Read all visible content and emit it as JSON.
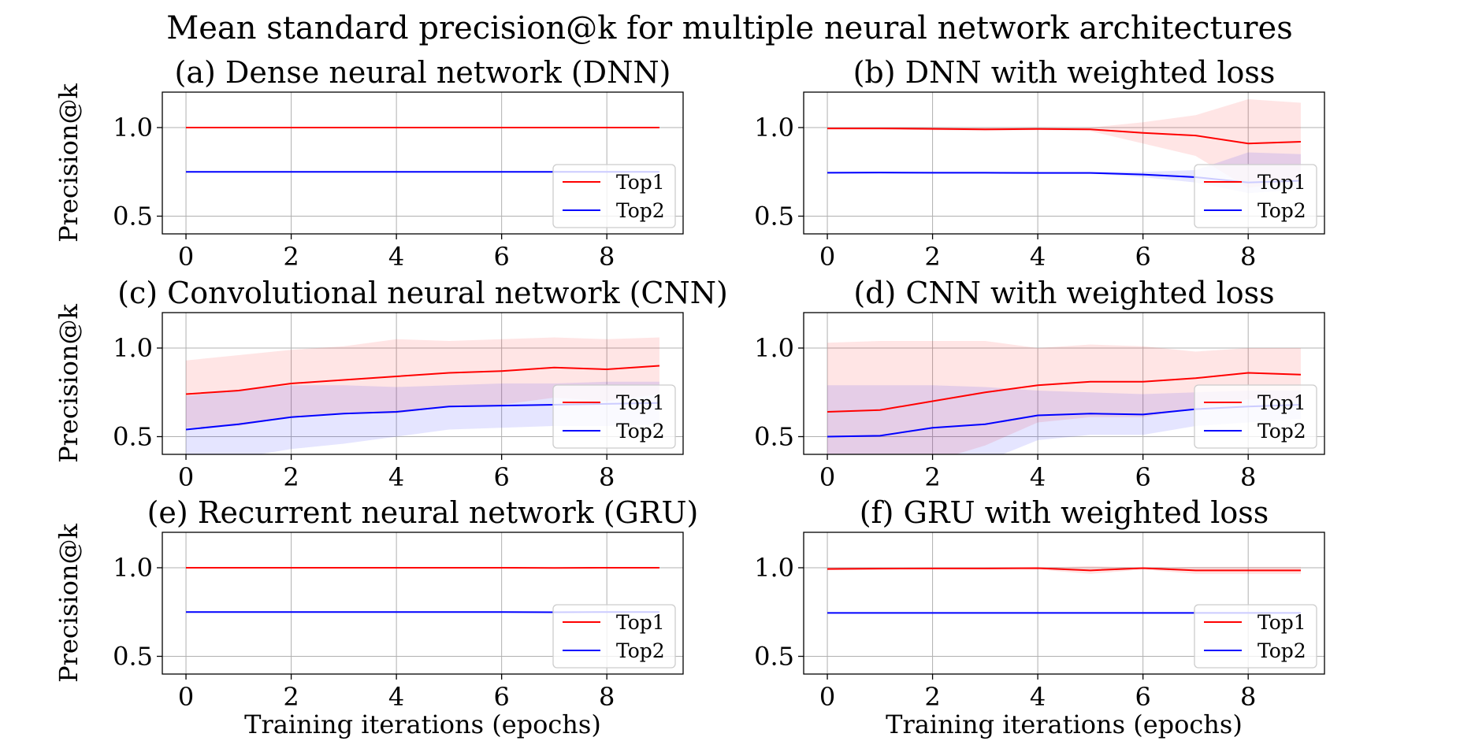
{
  "figure": {
    "title": "Mean standard precision@k for multiple neural network architectures"
  },
  "colors": {
    "top1": "#ff0000",
    "top2": "#0000ff",
    "top1_band": "#ff0000",
    "top2_band": "#0000ff",
    "grid": "#b0b0b0"
  },
  "chart_data": [
    {
      "type": "line",
      "title": "(a) Dense neural network (DNN)",
      "xlabel": "",
      "ylabel": "Precision@k",
      "xlim": [
        -0.45,
        9.45
      ],
      "ylim": [
        0.4,
        1.2
      ],
      "xticks": [
        0,
        2,
        4,
        6,
        8
      ],
      "yticks": [
        0.5,
        1.0
      ],
      "grid": true,
      "legend": "lower-right",
      "x": [
        0,
        1,
        2,
        3,
        4,
        5,
        6,
        7,
        8,
        9
      ],
      "series": [
        {
          "name": "Top1",
          "color": "top1",
          "values": [
            1.0,
            1.0,
            1.0,
            1.0,
            1.0,
            1.0,
            1.0,
            1.0,
            1.0,
            1.0
          ],
          "band_lower": [
            1.0,
            1.0,
            1.0,
            1.0,
            1.0,
            1.0,
            1.0,
            1.0,
            1.0,
            1.0
          ],
          "band_upper": [
            1.0,
            1.0,
            1.0,
            1.0,
            1.0,
            1.0,
            1.0,
            1.0,
            1.0,
            1.0
          ]
        },
        {
          "name": "Top2",
          "color": "top2",
          "values": [
            0.75,
            0.75,
            0.75,
            0.75,
            0.75,
            0.75,
            0.75,
            0.75,
            0.75,
            0.75
          ],
          "band_lower": [
            0.75,
            0.75,
            0.75,
            0.75,
            0.75,
            0.75,
            0.75,
            0.75,
            0.75,
            0.75
          ],
          "band_upper": [
            0.75,
            0.75,
            0.75,
            0.75,
            0.75,
            0.75,
            0.75,
            0.75,
            0.75,
            0.75
          ]
        }
      ]
    },
    {
      "type": "line",
      "title": "(b) DNN with weighted loss",
      "xlabel": "",
      "ylabel": "",
      "xlim": [
        -0.45,
        9.45
      ],
      "ylim": [
        0.4,
        1.2
      ],
      "xticks": [
        0,
        2,
        4,
        6,
        8
      ],
      "yticks": [
        0.5,
        1.0
      ],
      "grid": true,
      "legend": "lower-right",
      "x": [
        0,
        1,
        2,
        3,
        4,
        5,
        6,
        7,
        8,
        9
      ],
      "series": [
        {
          "name": "Top1",
          "color": "top1",
          "values": [
            0.995,
            0.995,
            0.993,
            0.99,
            0.992,
            0.99,
            0.97,
            0.955,
            0.91,
            0.92
          ],
          "band_lower": [
            0.99,
            0.99,
            0.985,
            0.98,
            0.985,
            0.98,
            0.91,
            0.84,
            0.66,
            0.7
          ],
          "band_upper": [
            1.0,
            1.0,
            1.0,
            1.0,
            1.0,
            1.0,
            1.03,
            1.07,
            1.16,
            1.14
          ]
        },
        {
          "name": "Top2",
          "color": "top2",
          "values": [
            0.745,
            0.746,
            0.745,
            0.745,
            0.744,
            0.744,
            0.735,
            0.72,
            0.69,
            0.7
          ],
          "band_lower": [
            0.74,
            0.74,
            0.74,
            0.74,
            0.74,
            0.74,
            0.72,
            0.69,
            0.63,
            0.65
          ],
          "band_upper": [
            0.75,
            0.75,
            0.75,
            0.75,
            0.75,
            0.75,
            0.75,
            0.76,
            0.86,
            0.85
          ]
        }
      ]
    },
    {
      "type": "line",
      "title": "(c) Convolutional neural network (CNN)",
      "xlabel": "",
      "ylabel": "Precision@k",
      "xlim": [
        -0.45,
        9.45
      ],
      "ylim": [
        0.4,
        1.2
      ],
      "xticks": [
        0,
        2,
        4,
        6,
        8
      ],
      "yticks": [
        0.5,
        1.0
      ],
      "grid": true,
      "legend": "lower-right",
      "x": [
        0,
        1,
        2,
        3,
        4,
        5,
        6,
        7,
        8,
        9
      ],
      "series": [
        {
          "name": "Top1",
          "color": "top1",
          "values": [
            0.74,
            0.76,
            0.8,
            0.82,
            0.84,
            0.86,
            0.87,
            0.89,
            0.88,
            0.9
          ],
          "band_lower": [
            0.55,
            0.56,
            0.61,
            0.63,
            0.63,
            0.67,
            0.68,
            0.72,
            0.7,
            0.74
          ],
          "band_upper": [
            0.93,
            0.96,
            0.99,
            1.01,
            1.05,
            1.04,
            1.05,
            1.06,
            1.05,
            1.06
          ]
        },
        {
          "name": "Top2",
          "color": "top2",
          "values": [
            0.54,
            0.57,
            0.61,
            0.63,
            0.64,
            0.67,
            0.675,
            0.68,
            0.685,
            0.69
          ],
          "band_lower": [
            0.35,
            0.38,
            0.43,
            0.46,
            0.5,
            0.54,
            0.55,
            0.56,
            0.56,
            0.57
          ],
          "band_upper": [
            0.73,
            0.76,
            0.79,
            0.79,
            0.78,
            0.79,
            0.8,
            0.8,
            0.81,
            0.81
          ]
        }
      ]
    },
    {
      "type": "line",
      "title": "(d) CNN with weighted loss",
      "xlabel": "",
      "ylabel": "",
      "xlim": [
        -0.45,
        9.45
      ],
      "ylim": [
        0.4,
        1.2
      ],
      "xticks": [
        0,
        2,
        4,
        6,
        8
      ],
      "yticks": [
        0.5,
        1.0
      ],
      "grid": true,
      "legend": "lower-right",
      "x": [
        0,
        1,
        2,
        3,
        4,
        5,
        6,
        7,
        8,
        9
      ],
      "series": [
        {
          "name": "Top1",
          "color": "top1",
          "values": [
            0.64,
            0.65,
            0.7,
            0.75,
            0.79,
            0.81,
            0.81,
            0.83,
            0.86,
            0.85
          ],
          "band_lower": [
            0.25,
            0.25,
            0.36,
            0.45,
            0.58,
            0.61,
            0.61,
            0.66,
            0.71,
            0.7
          ],
          "band_upper": [
            1.03,
            1.04,
            1.04,
            1.04,
            1.0,
            1.02,
            1.01,
            0.98,
            1.0,
            1.0
          ]
        },
        {
          "name": "Top2",
          "color": "top2",
          "values": [
            0.5,
            0.505,
            0.55,
            0.57,
            0.62,
            0.63,
            0.625,
            0.655,
            0.67,
            0.68
          ],
          "band_lower": [
            0.21,
            0.22,
            0.3,
            0.36,
            0.48,
            0.51,
            0.51,
            0.56,
            0.58,
            0.6
          ],
          "band_upper": [
            0.79,
            0.79,
            0.79,
            0.78,
            0.76,
            0.75,
            0.74,
            0.75,
            0.76,
            0.76
          ]
        }
      ]
    },
    {
      "type": "line",
      "title": "(e) Recurrent neural network (GRU)",
      "xlabel": "Training iterations (epochs)",
      "ylabel": "Precision@k",
      "xlim": [
        -0.45,
        9.45
      ],
      "ylim": [
        0.4,
        1.2
      ],
      "xticks": [
        0,
        2,
        4,
        6,
        8
      ],
      "yticks": [
        0.5,
        1.0
      ],
      "grid": true,
      "legend": "lower-right",
      "x": [
        0,
        1,
        2,
        3,
        4,
        5,
        6,
        7,
        8,
        9
      ],
      "series": [
        {
          "name": "Top1",
          "color": "top1",
          "values": [
            1.0,
            1.0,
            1.0,
            1.0,
            1.0,
            1.0,
            1.0,
            0.999,
            1.0,
            1.0
          ],
          "band_lower": [
            1.0,
            1.0,
            1.0,
            1.0,
            1.0,
            1.0,
            1.0,
            0.997,
            1.0,
            1.0
          ],
          "band_upper": [
            1.0,
            1.0,
            1.0,
            1.0,
            1.0,
            1.0,
            1.0,
            1.001,
            1.0,
            1.0
          ]
        },
        {
          "name": "Top2",
          "color": "top2",
          "values": [
            0.75,
            0.75,
            0.75,
            0.75,
            0.75,
            0.75,
            0.75,
            0.749,
            0.75,
            0.75
          ],
          "band_lower": [
            0.75,
            0.75,
            0.75,
            0.75,
            0.75,
            0.75,
            0.75,
            0.748,
            0.75,
            0.75
          ],
          "band_upper": [
            0.75,
            0.75,
            0.75,
            0.75,
            0.75,
            0.75,
            0.75,
            0.75,
            0.75,
            0.75
          ]
        }
      ]
    },
    {
      "type": "line",
      "title": "(f) GRU with weighted loss",
      "xlabel": "Training iterations (epochs)",
      "ylabel": "",
      "xlim": [
        -0.45,
        9.45
      ],
      "ylim": [
        0.4,
        1.2
      ],
      "xticks": [
        0,
        2,
        4,
        6,
        8
      ],
      "yticks": [
        0.5,
        1.0
      ],
      "grid": true,
      "legend": "lower-right",
      "x": [
        0,
        1,
        2,
        3,
        4,
        5,
        6,
        7,
        8,
        9
      ],
      "series": [
        {
          "name": "Top1",
          "color": "top1",
          "values": [
            0.993,
            0.995,
            0.996,
            0.996,
            0.998,
            0.985,
            0.998,
            0.985,
            0.985,
            0.985
          ],
          "band_lower": [
            0.99,
            0.99,
            0.99,
            0.99,
            0.99,
            0.965,
            0.99,
            0.965,
            0.965,
            0.965
          ],
          "band_upper": [
            1.0,
            1.0,
            1.0,
            1.0,
            1.0,
            1.01,
            1.0,
            1.005,
            1.005,
            1.005
          ]
        },
        {
          "name": "Top2",
          "color": "top2",
          "values": [
            0.745,
            0.745,
            0.745,
            0.745,
            0.745,
            0.745,
            0.745,
            0.745,
            0.745,
            0.745
          ],
          "band_lower": [
            0.745,
            0.745,
            0.745,
            0.745,
            0.745,
            0.745,
            0.745,
            0.745,
            0.745,
            0.745
          ],
          "band_upper": [
            0.745,
            0.745,
            0.745,
            0.745,
            0.745,
            0.745,
            0.745,
            0.745,
            0.745,
            0.745
          ]
        }
      ]
    }
  ]
}
